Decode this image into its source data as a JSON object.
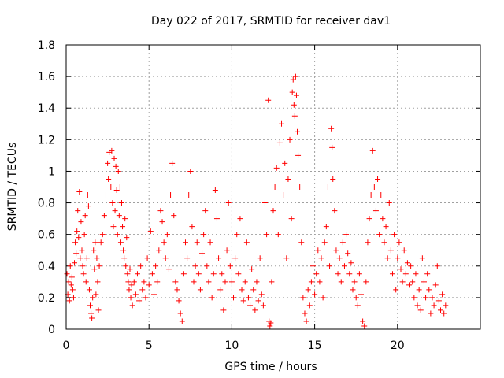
{
  "chart_data": {
    "type": "scatter",
    "title": "Day 022 of 2017, SRMTID for receiver dav1",
    "xlabel": "GPS time / hours",
    "ylabel": "SRMTID / TECUs",
    "xlim": [
      0,
      25
    ],
    "ylim": [
      0,
      1.8
    ],
    "xticks": [
      0,
      5,
      10,
      15,
      20
    ],
    "xtick_labels": [
      "0",
      "5",
      "10",
      "15",
      "20"
    ],
    "yticks": [
      0,
      0.2,
      0.4,
      0.6,
      0.8,
      1.0,
      1.2,
      1.4,
      1.6,
      1.8
    ],
    "ytick_labels": [
      "0",
      "0.2",
      "0.4",
      "0.6",
      "0.8",
      "1",
      "1.2",
      "1.4",
      "1.6",
      "1.8"
    ],
    "grid": true,
    "marker": "plus",
    "color": "#ff0000",
    "series": [
      {
        "name": "dav1",
        "points": [
          [
            0.05,
            0.35
          ],
          [
            0.1,
            0.22
          ],
          [
            0.15,
            0.3
          ],
          [
            0.2,
            0.18
          ],
          [
            0.25,
            0.4
          ],
          [
            0.3,
            0.28
          ],
          [
            0.35,
            0.33
          ],
          [
            0.4,
            0.25
          ],
          [
            0.45,
            0.2
          ],
          [
            0.5,
            0.42
          ],
          [
            0.55,
            0.55
          ],
          [
            0.6,
            0.48
          ],
          [
            0.65,
            0.62
          ],
          [
            0.7,
            0.75
          ],
          [
            0.75,
            0.58
          ],
          [
            0.8,
            0.87
          ],
          [
            0.85,
            0.45
          ],
          [
            0.9,
            0.68
          ],
          [
            0.95,
            0.5
          ],
          [
            1.0,
            0.4
          ],
          [
            1.05,
            0.35
          ],
          [
            1.1,
            0.6
          ],
          [
            1.15,
            0.72
          ],
          [
            1.2,
            0.3
          ],
          [
            1.25,
            0.45
          ],
          [
            1.3,
            0.85
          ],
          [
            1.35,
            0.78
          ],
          [
            1.4,
            0.25
          ],
          [
            1.45,
            0.15
          ],
          [
            1.5,
            0.1
          ],
          [
            1.55,
            0.07
          ],
          [
            1.6,
            0.2
          ],
          [
            1.65,
            0.5
          ],
          [
            1.7,
            0.38
          ],
          [
            1.75,
            0.55
          ],
          [
            1.8,
            0.22
          ],
          [
            1.85,
            0.45
          ],
          [
            1.9,
            0.3
          ],
          [
            1.95,
            0.12
          ],
          [
            2.0,
            0.4
          ],
          [
            2.1,
            0.55
          ],
          [
            2.2,
            0.6
          ],
          [
            2.3,
            0.72
          ],
          [
            2.4,
            0.85
          ],
          [
            2.5,
            1.05
          ],
          [
            2.55,
            0.95
          ],
          [
            2.6,
            1.12
          ],
          [
            2.7,
            0.9
          ],
          [
            2.75,
            1.13
          ],
          [
            2.8,
            0.8
          ],
          [
            2.85,
            0.65
          ],
          [
            2.9,
            1.08
          ],
          [
            2.95,
            0.75
          ],
          [
            3.0,
            1.03
          ],
          [
            3.05,
            0.88
          ],
          [
            3.1,
            0.6
          ],
          [
            3.15,
            1.0
          ],
          [
            3.2,
            0.72
          ],
          [
            3.25,
            0.9
          ],
          [
            3.3,
            0.55
          ],
          [
            3.35,
            0.8
          ],
          [
            3.4,
            0.65
          ],
          [
            3.45,
            0.5
          ],
          [
            3.5,
            0.45
          ],
          [
            3.55,
            0.7
          ],
          [
            3.6,
            0.4
          ],
          [
            3.65,
            0.58
          ],
          [
            3.7,
            0.35
          ],
          [
            3.75,
            0.3
          ],
          [
            3.8,
            0.25
          ],
          [
            3.85,
            0.38
          ],
          [
            3.9,
            0.2
          ],
          [
            3.95,
            0.28
          ],
          [
            4.0,
            0.15
          ],
          [
            4.1,
            0.3
          ],
          [
            4.2,
            0.22
          ],
          [
            4.3,
            0.35
          ],
          [
            4.4,
            0.18
          ],
          [
            4.5,
            0.4
          ],
          [
            4.6,
            0.25
          ],
          [
            4.7,
            0.3
          ],
          [
            4.8,
            0.2
          ],
          [
            4.9,
            0.45
          ],
          [
            5.0,
            0.28
          ],
          [
            5.1,
            0.62
          ],
          [
            5.2,
            0.35
          ],
          [
            5.3,
            0.22
          ],
          [
            5.4,
            0.4
          ],
          [
            5.5,
            0.3
          ],
          [
            5.6,
            0.5
          ],
          [
            5.7,
            0.75
          ],
          [
            5.8,
            0.68
          ],
          [
            5.9,
            0.55
          ],
          [
            6.0,
            0.45
          ],
          [
            6.1,
            0.6
          ],
          [
            6.2,
            0.38
          ],
          [
            6.3,
            0.85
          ],
          [
            6.4,
            1.05
          ],
          [
            6.5,
            0.72
          ],
          [
            6.6,
            0.3
          ],
          [
            6.7,
            0.25
          ],
          [
            6.8,
            0.18
          ],
          [
            6.9,
            0.1
          ],
          [
            7.0,
            0.05
          ],
          [
            7.1,
            0.35
          ],
          [
            7.2,
            0.55
          ],
          [
            7.3,
            0.45
          ],
          [
            7.4,
            0.85
          ],
          [
            7.5,
            1.0
          ],
          [
            7.6,
            0.65
          ],
          [
            7.7,
            0.3
          ],
          [
            7.8,
            0.4
          ],
          [
            7.9,
            0.55
          ],
          [
            8.0,
            0.35
          ],
          [
            8.1,
            0.25
          ],
          [
            8.2,
            0.48
          ],
          [
            8.3,
            0.6
          ],
          [
            8.4,
            0.75
          ],
          [
            8.5,
            0.4
          ],
          [
            8.6,
            0.3
          ],
          [
            8.7,
            0.55
          ],
          [
            8.8,
            0.2
          ],
          [
            8.9,
            0.35
          ],
          [
            9.0,
            0.88
          ],
          [
            9.1,
            0.7
          ],
          [
            9.2,
            0.45
          ],
          [
            9.3,
            0.25
          ],
          [
            9.4,
            0.35
          ],
          [
            9.5,
            0.12
          ],
          [
            9.6,
            0.3
          ],
          [
            9.7,
            0.5
          ],
          [
            9.8,
            0.8
          ],
          [
            9.9,
            0.4
          ],
          [
            10.0,
            0.3
          ],
          [
            10.1,
            0.2
          ],
          [
            10.2,
            0.45
          ],
          [
            10.3,
            0.6
          ],
          [
            10.4,
            0.35
          ],
          [
            10.5,
            0.7
          ],
          [
            10.6,
            0.25
          ],
          [
            10.7,
            0.18
          ],
          [
            10.8,
            0.3
          ],
          [
            10.9,
            0.55
          ],
          [
            11.0,
            0.2
          ],
          [
            11.1,
            0.15
          ],
          [
            11.2,
            0.38
          ],
          [
            11.3,
            0.25
          ],
          [
            11.4,
            0.12
          ],
          [
            11.5,
            0.3
          ],
          [
            11.6,
            0.18
          ],
          [
            11.7,
            0.45
          ],
          [
            11.8,
            0.22
          ],
          [
            11.9,
            0.15
          ],
          [
            12.0,
            0.8
          ],
          [
            12.1,
            0.6
          ],
          [
            12.2,
            1.45
          ],
          [
            12.25,
            0.05
          ],
          [
            12.3,
            0.02
          ],
          [
            12.35,
            0.04
          ],
          [
            12.4,
            0.3
          ],
          [
            12.5,
            0.75
          ],
          [
            12.6,
            0.9
          ],
          [
            12.7,
            1.02
          ],
          [
            12.8,
            0.6
          ],
          [
            12.9,
            1.18
          ],
          [
            13.0,
            1.3
          ],
          [
            13.1,
            0.85
          ],
          [
            13.2,
            1.05
          ],
          [
            13.3,
            0.45
          ],
          [
            13.4,
            0.95
          ],
          [
            13.5,
            1.2
          ],
          [
            13.6,
            0.7
          ],
          [
            13.65,
            1.5
          ],
          [
            13.7,
            1.58
          ],
          [
            13.75,
            1.42
          ],
          [
            13.8,
            1.35
          ],
          [
            13.85,
            1.6
          ],
          [
            13.9,
            1.48
          ],
          [
            13.95,
            1.25
          ],
          [
            14.0,
            1.1
          ],
          [
            14.1,
            0.9
          ],
          [
            14.2,
            0.55
          ],
          [
            14.3,
            0.2
          ],
          [
            14.4,
            0.1
          ],
          [
            14.5,
            0.05
          ],
          [
            14.6,
            0.25
          ],
          [
            14.7,
            0.15
          ],
          [
            14.8,
            0.3
          ],
          [
            14.9,
            0.4
          ],
          [
            15.0,
            0.22
          ],
          [
            15.1,
            0.35
          ],
          [
            15.2,
            0.5
          ],
          [
            15.3,
            0.3
          ],
          [
            15.4,
            0.45
          ],
          [
            15.5,
            0.2
          ],
          [
            15.6,
            0.55
          ],
          [
            15.7,
            0.65
          ],
          [
            15.8,
            0.9
          ],
          [
            15.9,
            0.4
          ],
          [
            16.0,
            1.27
          ],
          [
            16.05,
            1.15
          ],
          [
            16.1,
            0.95
          ],
          [
            16.2,
            0.75
          ],
          [
            16.3,
            0.5
          ],
          [
            16.4,
            0.35
          ],
          [
            16.5,
            0.45
          ],
          [
            16.6,
            0.3
          ],
          [
            16.7,
            0.55
          ],
          [
            16.8,
            0.4
          ],
          [
            16.9,
            0.6
          ],
          [
            17.0,
            0.48
          ],
          [
            17.1,
            0.35
          ],
          [
            17.2,
            0.42
          ],
          [
            17.3,
            0.25
          ],
          [
            17.4,
            0.3
          ],
          [
            17.5,
            0.2
          ],
          [
            17.6,
            0.15
          ],
          [
            17.7,
            0.35
          ],
          [
            17.8,
            0.22
          ],
          [
            17.9,
            0.05
          ],
          [
            18.0,
            0.02
          ],
          [
            18.1,
            0.3
          ],
          [
            18.2,
            0.55
          ],
          [
            18.3,
            0.7
          ],
          [
            18.4,
            0.85
          ],
          [
            18.5,
            1.13
          ],
          [
            18.6,
            0.9
          ],
          [
            18.7,
            0.75
          ],
          [
            18.8,
            0.95
          ],
          [
            18.9,
            0.6
          ],
          [
            19.0,
            0.85
          ],
          [
            19.1,
            0.7
          ],
          [
            19.2,
            0.55
          ],
          [
            19.3,
            0.65
          ],
          [
            19.4,
            0.45
          ],
          [
            19.5,
            0.8
          ],
          [
            19.6,
            0.5
          ],
          [
            19.7,
            0.35
          ],
          [
            19.8,
            0.6
          ],
          [
            19.9,
            0.25
          ],
          [
            20.0,
            0.45
          ],
          [
            20.1,
            0.55
          ],
          [
            20.2,
            0.38
          ],
          [
            20.3,
            0.3
          ],
          [
            20.4,
            0.5
          ],
          [
            20.5,
            0.35
          ],
          [
            20.6,
            0.42
          ],
          [
            20.7,
            0.28
          ],
          [
            20.8,
            0.4
          ],
          [
            20.9,
            0.3
          ],
          [
            21.0,
            0.2
          ],
          [
            21.1,
            0.35
          ],
          [
            21.2,
            0.15
          ],
          [
            21.3,
            0.25
          ],
          [
            21.4,
            0.12
          ],
          [
            21.5,
            0.45
          ],
          [
            21.6,
            0.3
          ],
          [
            21.7,
            0.2
          ],
          [
            21.8,
            0.35
          ],
          [
            21.9,
            0.25
          ],
          [
            22.0,
            0.1
          ],
          [
            22.1,
            0.2
          ],
          [
            22.2,
            0.15
          ],
          [
            22.3,
            0.28
          ],
          [
            22.4,
            0.4
          ],
          [
            22.5,
            0.18
          ],
          [
            22.6,
            0.12
          ],
          [
            22.7,
            0.22
          ],
          [
            22.8,
            0.1
          ],
          [
            22.9,
            0.15
          ]
        ]
      }
    ]
  }
}
